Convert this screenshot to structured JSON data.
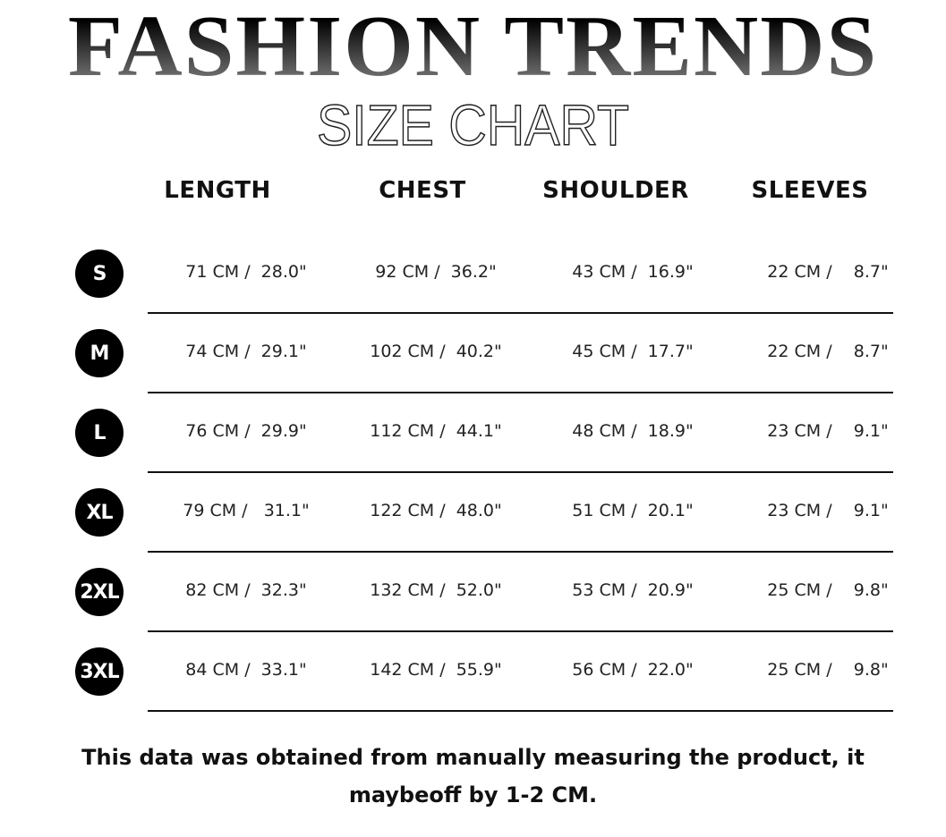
{
  "title": "FASHION TRENDS",
  "subtitle": "SIZE CHART",
  "headers": [
    "LENGTH",
    "CHEST",
    "SHOULDER",
    "SLEEVES"
  ],
  "rows": [
    {
      "size": "S",
      "cells": [
        "71 CM /  28.0\"",
        "92 CM /  36.2\"",
        "43 CM /  16.9\"",
        "22 CM /    8.7\""
      ]
    },
    {
      "size": "M",
      "cells": [
        "74 CM /  29.1\"",
        "102 CM /  40.2\"",
        "45 CM /  17.7\"",
        "22 CM /    8.7\""
      ]
    },
    {
      "size": "L",
      "cells": [
        "76 CM /  29.9\"",
        "112 CM /  44.1\"",
        "48 CM /  18.9\"",
        "23 CM /    9.1\""
      ]
    },
    {
      "size": "XL",
      "cells": [
        "79 CM /   31.1\"",
        "122 CM /  48.0\"",
        "51 CM /  20.1\"",
        "23 CM /    9.1\""
      ]
    },
    {
      "size": "2XL",
      "cells": [
        "82 CM /  32.3\"",
        "132 CM /  52.0\"",
        "53 CM /  20.9\"",
        "25 CM /    9.8\""
      ]
    },
    {
      "size": "3XL",
      "cells": [
        "84 CM /  33.1\"",
        "142 CM /  55.9\"",
        "56 CM /  22.0\"",
        "25 CM /    9.8\""
      ]
    }
  ],
  "note": "This data was obtained from manually measuring the product, it maybeoff by 1-2 CM."
}
